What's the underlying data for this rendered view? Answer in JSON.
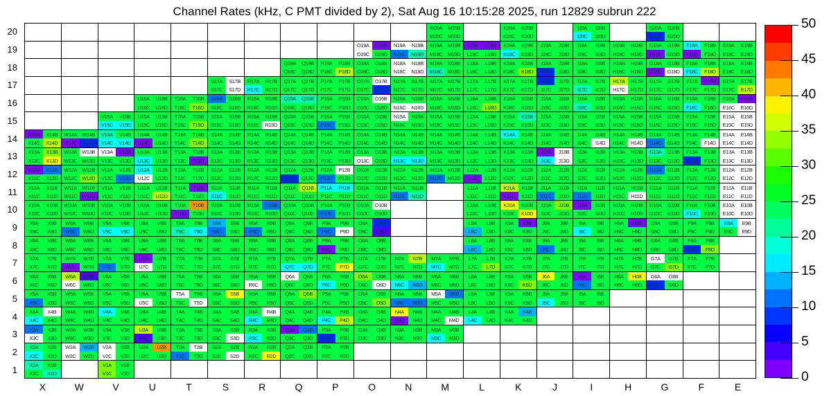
{
  "title": "Channel Rates (kHz, C PMT divided by 2), Sat Aug 16 10:15:28 2025, run 12829 subrun 222",
  "chart_data": {
    "type": "heatmap",
    "title": "Channel Rates (kHz, C PMT divided by 2), Sat Aug 16 10:15:28 2025, run 12829 subrun 222",
    "unit": "kHz",
    "axes": {
      "x_labels": [
        "X",
        "W",
        "V",
        "U",
        "T",
        "S",
        "R",
        "Q",
        "P",
        "O",
        "N",
        "M",
        "L",
        "K",
        "J",
        "I",
        "H",
        "G",
        "F",
        "E"
      ],
      "y_labels_top_to_bottom": [
        "20",
        "19",
        "18",
        "17",
        "16",
        "15",
        "14",
        "13",
        "12",
        "11",
        "10",
        "9",
        "8",
        "7",
        "6",
        "5",
        "4",
        "3",
        "2",
        "1"
      ],
      "channels": [
        "A",
        "B",
        "C",
        "D"
      ]
    },
    "palette": {
      "p": "#8000FF",
      "v": "#4D00FF",
      "b": "#0026FF",
      "B": "#0073FF",
      "c": "#00B3FF",
      "C": "#00FFFF",
      "t": "#00FFB3",
      "s": "#00FF80",
      "g": "#00FF40",
      "G": "#1FFF00",
      "l": "#80FF00",
      "y": "#BFFF00",
      "Y": "#FFFF00",
      "o": "#FFBF00",
      "O": "#FF9500",
      "r": "#FF4000",
      "R": "#FF0000",
      "w": "#FFFFFF"
    },
    "palette_value_khz": {
      "p": 1,
      "v": 4,
      "b": 6,
      "B": 9,
      "c": 12,
      "C": 16,
      "t": 19,
      "s": 21,
      "g": 25,
      "G": 27,
      "l": 31,
      "y": 34,
      "Y": 36,
      "o": 39,
      "O": 42,
      "r": 46,
      "R": 49,
      "w": 0
    },
    "grid_rows": [
      {
        "y": "20",
        "cells": {
          "M": "gggg",
          "K": "gggg",
          "I": "ggCg",
          "G": "ggbg"
        }
      },
      {
        "y": "19",
        "cells": {
          "O": "wpwg",
          "N": "wwBt",
          "M": "gggg",
          "L": "ppgg",
          "K": "ggCg",
          "J": "gggg",
          "I": "gggg",
          "H": "gggg",
          "G": "ggpg",
          "F": "Cgpg",
          "E": "gggg"
        }
      },
      {
        "y": "18",
        "cells": {
          "Q": "gggg",
          "P": "gggy",
          "O": "gggg",
          "N": "wwww",
          "M": "ggtg",
          "L": "gggg",
          "K": "gggl",
          "J": "ggbg",
          "I": "gggg",
          "H": "gggg",
          "G": "ggpw",
          "F": "ggCy",
          "E": "gggg"
        }
      },
      {
        "y": "17",
        "cells": {
          "S": "gwgw",
          "R": "ggCg",
          "Q": "gggg",
          "P": "gggg",
          "O": "gwgb",
          "N": "gggg",
          "M": "gggg",
          "L": "gggg",
          "K": "gggg",
          "J": "bggg",
          "I": "ggtg",
          "H": "ygwg",
          "G": "gggg",
          "F": "gpgg",
          "E": "gggy"
        }
      },
      {
        "y": "16",
        "cells": {
          "U": "gggg",
          "T": "gggl",
          "S": "Bggg",
          "R": "gggg",
          "Q": "ttgg",
          "P": "gggg",
          "O": "gwgg",
          "N": "ggww",
          "M": "gggg",
          "L": "gggl",
          "K": "gggg",
          "J": "gggg",
          "I": "ggtg",
          "H": "gggg",
          "G": "gggg",
          "F": "ggCg",
          "E": "gpww"
        }
      },
      {
        "y": "15",
        "cells": {
          "V": "ggCC",
          "U": "gggg",
          "T": "gggl",
          "S": "gggg",
          "R": "gggw",
          "Q": "gggg",
          "P": "ggBg",
          "O": "gggg",
          "N": "wggg",
          "M": "gggg",
          "L": "gggg",
          "K": "gtgg",
          "J": "gggg",
          "I": "gggg",
          "H": "gggg",
          "G": "gggg",
          "F": "gggg",
          "E": "wwww"
        }
      },
      {
        "y": "14",
        "cells": {
          "X": "pggy",
          "W": "ggpb",
          "V": "tgCC",
          "U": "ggpg",
          "T": "gggl",
          "S": "gggg",
          "R": "gggg",
          "Q": "gggg",
          "P": "gggg",
          "O": "gggg",
          "N": "gggg",
          "M": "gggg",
          "L": "gggg",
          "K": "Cggg",
          "J": "gggg",
          "I": "gggw",
          "H": "gggw",
          "G": "ggBg",
          "F": "gggw",
          "E": "wwww"
        }
      },
      {
        "y": "13",
        "cells": {
          "X": "glgY",
          "W": "gwgg",
          "V": "wpgg",
          "U": "ggCg",
          "T": "gggp",
          "S": "gggg",
          "R": "gggg",
          "Q": "gggg",
          "P": "gggg",
          "O": "ggwg",
          "N": "ggCC",
          "M": "gggg",
          "L": "gggg",
          "K": "gggg",
          "J": "pwCw",
          "I": "gggg",
          "H": "gggg",
          "G": "tggg",
          "F": "ggbg",
          "E": "wwww"
        }
      },
      {
        "y": "12",
        "cells": {
          "X": "pBgg",
          "W": "gggl",
          "V": "gggB",
          "U": "Cgwg",
          "T": "gggg",
          "S": "gggg",
          "R": "gggg",
          "Q": "ggbg",
          "P": "gwBg",
          "O": "gggg",
          "N": "gggg",
          "M": "ggBg",
          "L": "ggpg",
          "K": "gggg",
          "J": "gggg",
          "I": "gggg",
          "H": "gggg",
          "G": "Bggg",
          "F": "gggg",
          "E": "wwww"
        }
      },
      {
        "y": "11",
        "cells": {
          "X": "gggg",
          "W": "gggp",
          "V": "gggg",
          "U": "gggy",
          "T": "gpgg",
          "S": "ggCg",
          "R": "gggg",
          "Q": "gygg",
          "P": "CCgg",
          "O": "gggg",
          "N": "ggBt",
          "L": "gggg",
          "K": "ygpg",
          "J": "ggBg",
          "I": "ggBg",
          "H": "gggw",
          "G": "gggg",
          "F": "gggg",
          "E": "wwww"
        }
      },
      {
        "y": "10",
        "cells": {
          "X": "gggg",
          "W": "gggg",
          "V": "gggg",
          "U": "gggg",
          "T": "gOpg",
          "S": "gggg",
          "R": "gBgg",
          "Q": "gggg",
          "P": "ggBg",
          "O": "gwgg",
          "L": "gggg",
          "K": "YggY",
          "J": "glgg",
          "I": "pggg",
          "H": "gggg",
          "G": "gggg",
          "F": "ggCg",
          "E": "wwww"
        }
      },
      {
        "y": "9",
        "cells": {
          "X": "gggg",
          "W": "ggBg",
          "V": "ggCC",
          "U": "gggg",
          "T": "ggtC",
          "S": "cgBg",
          "R": "ggBg",
          "Q": "gggg",
          "P": "ggBw",
          "O": "gbgv",
          "L": "ggcg",
          "K": "gpgg",
          "J": "gggg",
          "I": "ggCg",
          "H": "gpgg",
          "G": "gggg",
          "F": "gggg",
          "E": "Cwgw"
        }
      },
      {
        "y": "8",
        "cells": {
          "X": "gggg",
          "W": "gggg",
          "V": "gggg",
          "U": "gggg",
          "T": "gggg",
          "S": "gggg",
          "R": "gggg",
          "Q": "gggg",
          "P": "ggpg",
          "O": "gggg",
          "L": "ggcg",
          "K": "gggg",
          "J": "ggBg",
          "I": "gggg",
          "H": "gggg",
          "G": "gggg",
          "F": "ggbl"
        }
      },
      {
        "y": "7",
        "cells": {
          "X": "gggg",
          "W": "ggpg",
          "V": "ggBg",
          "U": "pgwg",
          "T": "gggg",
          "S": "gggg",
          "R": "gggg",
          "Q": "ggCC",
          "P": "gggY",
          "O": "gggg",
          "N": "gygg",
          "M": "ggCg",
          "L": "gggl",
          "K": "gggg",
          "J": "gggg",
          "I": "gggg",
          "H": "gggg",
          "G": "wggl",
          "F": "gggg"
        }
      },
      {
        "y": "6",
        "cells": {
          "X": "gggg",
          "W": "yvwg",
          "V": "gggg",
          "U": "gggg",
          "T": "gggg",
          "S": "gggg",
          "R": "ggwg",
          "Q": "wggg",
          "P": "ggCg",
          "O": "lggw",
          "N": "ggCc",
          "M": "gggg",
          "L": "gggg",
          "K": "gggl",
          "J": "Yggg",
          "I": "pgBg",
          "H": "gYgg",
          "G": "wwbg"
        }
      },
      {
        "y": "5",
        "cells": {
          "X": "ggBg",
          "W": "gggg",
          "V": "gggg",
          "U": "ggwg",
          "T": "wggw",
          "S": "gYgg",
          "R": "gggg",
          "Q": "glgg",
          "P": "gggg",
          "O": "gggl",
          "N": "ggBB",
          "M": "wBgg",
          "L": "gggg",
          "K": "gggg",
          "J": "ggCg",
          "I": "gggg"
        }
      },
      {
        "y": "4",
        "cells": {
          "X": "gwCg",
          "W": "gggg",
          "V": "Cggg",
          "U": "gggg",
          "T": "gggg",
          "S": "gggg",
          "R": "gwCg",
          "Q": "gggg",
          "P": "ggCy",
          "O": "gggg",
          "N": "Ygpg",
          "M": "gggw",
          "L": "ggCg",
          "K": "gcgg"
        }
      },
      {
        "y": "3",
        "cells": {
          "X": "Bgwg",
          "W": "gggg",
          "V": "gggg",
          "U": "ygvg",
          "T": "gggg",
          "S": "gggw",
          "R": "ggCg",
          "Q": "pBgg",
          "P": "ggbg",
          "O": "gggg",
          "N": "gggg",
          "M": "ggCg"
        }
      },
      {
        "y": "2",
        "cells": {
          "X": "sgCg",
          "W": "wcwg",
          "V": "wgwg",
          "U": "gOgg",
          "T": "gwBg",
          "S": "gggw",
          "R": "gggY",
          "Q": "gggg",
          "P": "gggg"
        }
      },
      {
        "y": "1",
        "cells": {
          "X": "tggt",
          "V": "lglg"
        }
      }
    ],
    "colorbar": {
      "min": 0,
      "max": 50,
      "tick_labels": [
        "0",
        "5",
        "10",
        "15",
        "20",
        "25",
        "30",
        "35",
        "40",
        "45",
        "50"
      ],
      "bands_bottom_to_top": [
        "#8000FF",
        "#4300FF",
        "#0700FF",
        "#0036FF",
        "#0072FF",
        "#00AFFF",
        "#00EBFF",
        "#00FFD7",
        "#00FF9A",
        "#00FF5E",
        "#00FF22",
        "#1BFF00",
        "#57FF00",
        "#93FF00",
        "#D0FF00",
        "#FFF200",
        "#FFB500",
        "#FF7900",
        "#FF3C00",
        "#FF0000"
      ]
    }
  }
}
